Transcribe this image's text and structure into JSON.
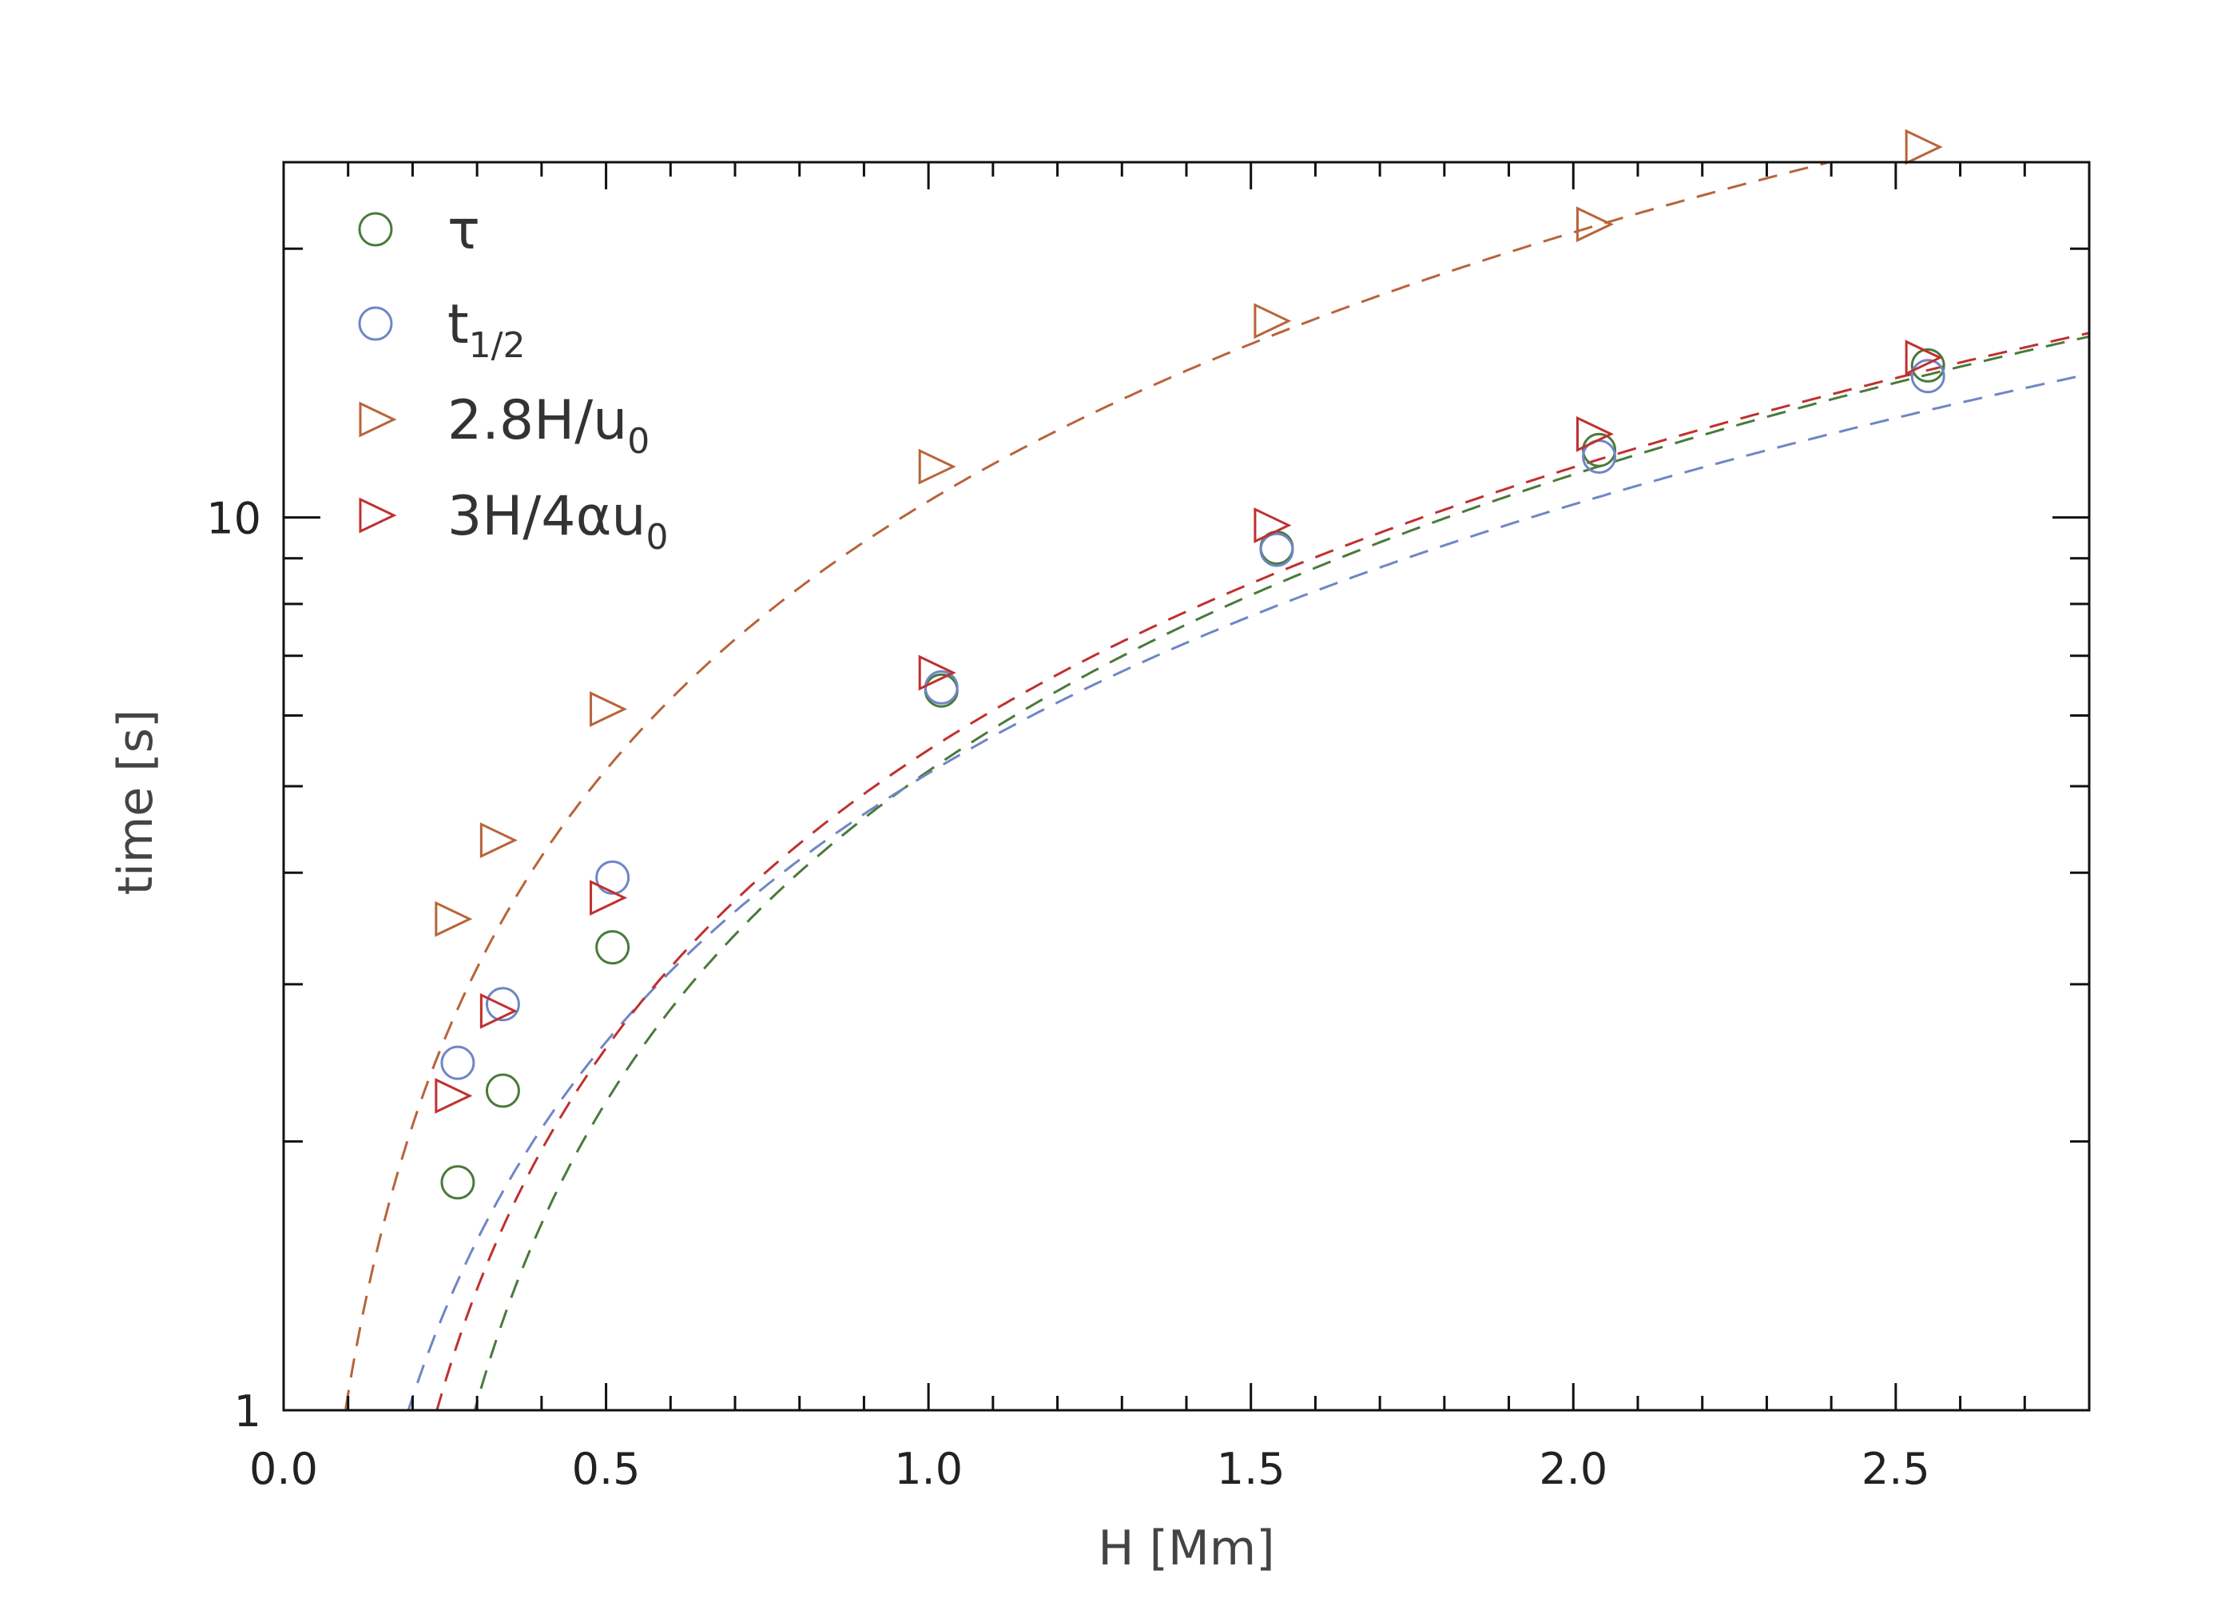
{
  "chart_data": {
    "type": "scatter",
    "title": "",
    "xlabel": "H [Mm]",
    "ylabel": "time [s]",
    "xlim": [
      0,
      2.8
    ],
    "ylim": [
      1,
      25
    ],
    "yscale": "log",
    "grid": false,
    "legend_position": "top-left",
    "x_ticks": [
      "0.0",
      "0.5",
      "1.0",
      "1.5",
      "2.0",
      "2.5"
    ],
    "y_ticks": [
      "1",
      "10"
    ],
    "series": [
      {
        "name": "τ",
        "marker": "circle-open",
        "color": "#4a7a3a",
        "x": [
          0.27,
          0.34,
          0.51,
          1.02,
          1.54,
          2.04,
          2.55
        ],
        "y": [
          1.8,
          2.28,
          3.3,
          6.4,
          9.25,
          11.9,
          14.8
        ],
        "fit": {
          "a": 5.97,
          "b": -0.77
        }
      },
      {
        "name": "t",
        "name_sub": "1/2",
        "marker": "circle-open",
        "color": "#6f86c6",
        "x": [
          0.27,
          0.34,
          0.51,
          1.02,
          1.54,
          2.04,
          2.55
        ],
        "y": [
          2.45,
          2.85,
          3.95,
          6.45,
          9.2,
          11.7,
          14.4
        ],
        "fit": {
          "a": 5.17,
          "b": 0.0
        }
      },
      {
        "name": "2.8H/u",
        "name_sub": "0",
        "marker": "triangle-open",
        "color": "#b8643a",
        "x": [
          0.26,
          0.33,
          0.5,
          1.01,
          1.53,
          2.03,
          2.54
        ],
        "y": [
          3.55,
          4.35,
          6.1,
          11.4,
          16.6,
          21.3,
          26.0
        ],
        "fit": {
          "a": 10.43,
          "b": 0.0
        }
      },
      {
        "name": "3H/4αu",
        "name_sub": "0",
        "marker": "triangle-open",
        "color": "#c03030",
        "x": [
          0.26,
          0.33,
          0.5,
          1.01,
          1.53,
          2.03,
          2.54
        ],
        "y": [
          2.25,
          2.8,
          3.75,
          6.7,
          9.8,
          12.4,
          15.1
        ],
        "fit": {
          "a": 5.89,
          "b": -0.4
        }
      }
    ]
  }
}
